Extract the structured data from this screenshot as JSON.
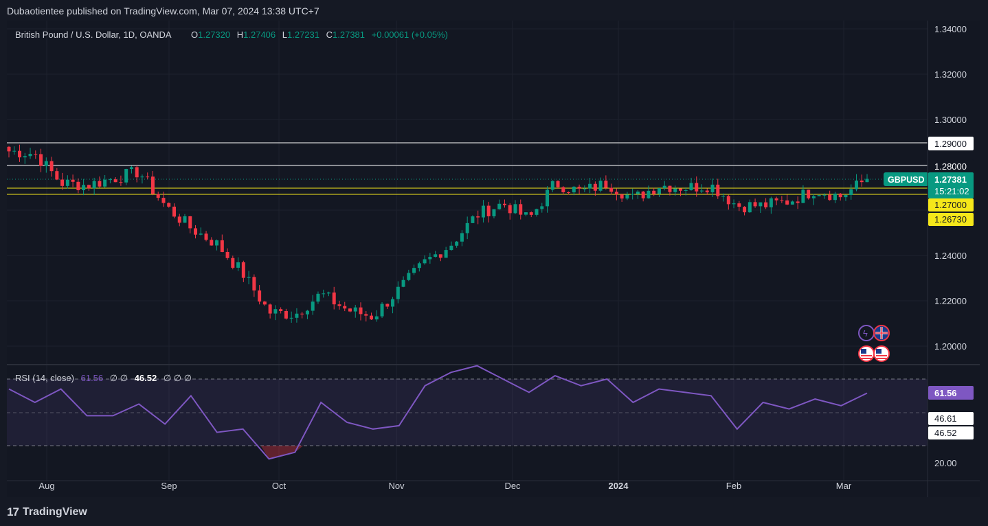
{
  "header": {
    "published": "Dubaotientee published on TradingView.com, Mar 07, 2024 13:38 UTC+7"
  },
  "legend": {
    "symbol": "British Pound / U.S. Dollar, 1D, OANDA",
    "o_label": "O",
    "o": "1.27320",
    "h_label": "H",
    "h": "1.27406",
    "l_label": "L",
    "l": "1.27231",
    "c_label": "C",
    "c": "1.27381",
    "change": "+0.00061 (+0.05%)"
  },
  "rsi_legend": {
    "label": "RSI (14, close)",
    "value1": "61.56",
    "sep": "∅ ∅",
    "value2": "46.52",
    "tail": "∅ ∅ ∅"
  },
  "price_axis": [
    "1.34000",
    "1.32000",
    "1.30000",
    "1.28000",
    "1.24000",
    "1.22000",
    "1.20000"
  ],
  "rsi_axis": [
    "20.00"
  ],
  "time_axis": [
    "Aug",
    "Sep",
    "Oct",
    "Nov",
    "Dec",
    "2024",
    "Feb",
    "Mar"
  ],
  "labels": {
    "symbol_tag": "GBPUSD",
    "last_price": "1.27381",
    "countdown": "15:21:02",
    "level_129": "1.29000",
    "level_128": "1.28000",
    "level_127": "1.27000",
    "level_1267": "1.26730",
    "rsi_value": "61.56",
    "rsi_ma1": "46.61",
    "rsi_ma2": "46.52"
  },
  "footer": {
    "brand": "TradingView"
  },
  "colors": {
    "up": "#089981",
    "down": "#f23645",
    "rsi": "#7e57c2",
    "yellow_line": "#f5e71a",
    "white_line": "#ffffff",
    "last_price": "#089981"
  },
  "chart_data": {
    "type": "candlestick",
    "symbol": "GBPUSD",
    "interval": "1D",
    "horizontal_levels": [
      1.29,
      1.28,
      1.27,
      1.2673
    ],
    "ylim": [
      1.193,
      1.346
    ],
    "x": [
      "Jul 20",
      "Jul 27",
      "Aug 3",
      "Aug 10",
      "Aug 17",
      "Aug 24",
      "Aug 31",
      "Sep 7",
      "Sep 14",
      "Sep 21",
      "Sep 28",
      "Oct 5",
      "Oct 12",
      "Oct 19",
      "Oct 26",
      "Nov 2",
      "Nov 9",
      "Nov 16",
      "Nov 23",
      "Nov 30",
      "Dec 7",
      "Dec 14",
      "Dec 21",
      "Dec 28",
      "Jan 4",
      "Jan 11",
      "Jan 18",
      "Jan 25",
      "Feb 1",
      "Feb 8",
      "Feb 15",
      "Feb 22",
      "Feb 29",
      "Mar 7"
    ],
    "close": [
      1.286,
      1.285,
      1.272,
      1.271,
      1.274,
      1.277,
      1.262,
      1.252,
      1.245,
      1.232,
      1.215,
      1.214,
      1.223,
      1.216,
      1.213,
      1.225,
      1.237,
      1.245,
      1.258,
      1.263,
      1.256,
      1.272,
      1.268,
      1.272,
      1.265,
      1.271,
      1.27,
      1.271,
      1.262,
      1.262,
      1.264,
      1.269,
      1.266,
      1.2738
    ],
    "rsi": {
      "name": "RSI (14, close)",
      "values": [
        64,
        56,
        64,
        48,
        48,
        55,
        43,
        60,
        38,
        40,
        22,
        26,
        56,
        44,
        40,
        42,
        66,
        74,
        78,
        70,
        62,
        72,
        66,
        70,
        56,
        64,
        62,
        60,
        40,
        56,
        52,
        58,
        54,
        61.56
      ],
      "ylim": [
        15,
        90
      ],
      "bands": [
        30,
        70
      ]
    }
  }
}
